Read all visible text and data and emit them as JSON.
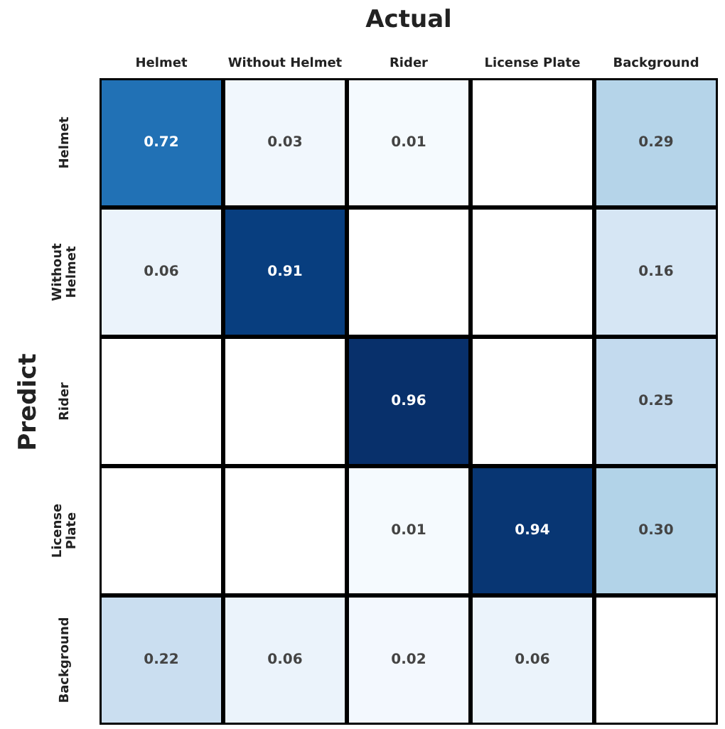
{
  "chart_data": {
    "type": "heatmap",
    "title": "Actual",
    "ylabel": "Predict",
    "categories": [
      "Helmet",
      "Without Helmet",
      "Rider",
      "License Plate",
      "Background"
    ],
    "y_categories": [
      "Helmet",
      "Without Helmet",
      "Rider",
      "License Plate",
      "Background"
    ],
    "cells": [
      [
        0.72,
        0.03,
        0.01,
        null,
        0.29
      ],
      [
        0.06,
        0.91,
        null,
        null,
        0.16
      ],
      [
        null,
        null,
        0.96,
        null,
        0.25
      ],
      [
        null,
        null,
        0.01,
        0.94,
        0.3
      ],
      [
        0.22,
        0.06,
        0.02,
        0.06,
        null
      ]
    ],
    "cell_labels": [
      [
        "0.72",
        "0.03",
        "0.01",
        null,
        "0.29"
      ],
      [
        "0.06",
        "0.91",
        null,
        null,
        "0.16"
      ],
      [
        null,
        null,
        "0.96",
        null,
        "0.25"
      ],
      [
        null,
        null,
        "0.01",
        "0.94",
        "0.30"
      ],
      [
        "0.22",
        "0.06",
        "0.02",
        "0.06",
        null
      ]
    ]
  }
}
